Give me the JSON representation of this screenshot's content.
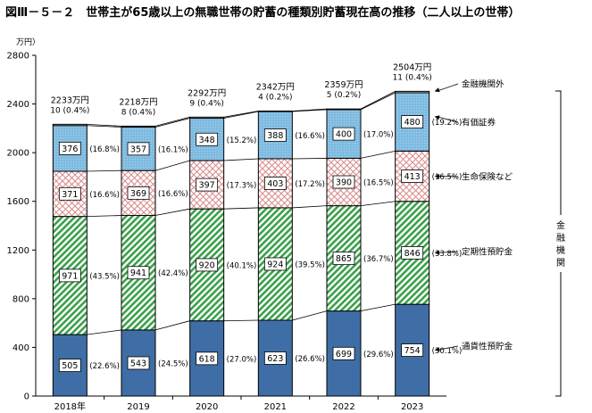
{
  "title": "図Ⅲ－５－２　世帯主が65歳以上の無職世帯の貯蓄の種類別貯蓄現在高の推移（二人以上の世帯）",
  "colors": {
    "currency": "#3f6ea6",
    "time": "#3aa04a",
    "insurance": "#d98a8a",
    "securities": "#7fbbe0",
    "other": "#ffffff",
    "stroke": "#000000"
  },
  "chart_data": {
    "type": "bar",
    "stacked": true,
    "title": "世帯主が65歳以上の無職世帯の貯蓄の種類別貯蓄現在高の推移（二人以上の世帯）",
    "ylabel": "万円）",
    "ylim": [
      0,
      2800
    ],
    "yticks": [
      0,
      400,
      800,
      1200,
      1600,
      2000,
      2400,
      2800
    ],
    "categories": [
      "2018年",
      "2019",
      "2020",
      "2021",
      "2022",
      "2023"
    ],
    "totals": [
      "2233万円",
      "2218万円",
      "2292万円",
      "2342万円",
      "2359万円",
      "2504万円"
    ],
    "series": [
      {
        "key": "currency",
        "name": "通貨性預貯金",
        "values": [
          505,
          543,
          618,
          623,
          699,
          754
        ],
        "shares": [
          "(22.6%)",
          "(24.5%)",
          "(27.0%)",
          "(26.6%)",
          "(29.6%)",
          "(30.1%)"
        ]
      },
      {
        "key": "time",
        "name": "定期性預貯金",
        "values": [
          971,
          941,
          920,
          924,
          865,
          846
        ],
        "shares": [
          "(43.5%)",
          "(42.4%)",
          "(40.1%)",
          "(39.5%)",
          "(36.7%)",
          "(33.8%)"
        ]
      },
      {
        "key": "insurance",
        "name": "生命保険など",
        "values": [
          371,
          369,
          397,
          403,
          390,
          413
        ],
        "shares": [
          "(16.6%)",
          "(16.6%)",
          "(17.3%)",
          "(17.2%)",
          "(16.5%)",
          "(16.5%)"
        ]
      },
      {
        "key": "securities",
        "name": "有価証券",
        "values": [
          376,
          357,
          348,
          388,
          400,
          480
        ],
        "shares": [
          "(16.8%)",
          "(16.1%)",
          "(15.2%)",
          "(16.6%)",
          "(17.0%)",
          "(19.2%)"
        ]
      },
      {
        "key": "other",
        "name": "金融機関外",
        "values": [
          10,
          8,
          9,
          4,
          5,
          11
        ],
        "labels": [
          "10 (0.4%)",
          "8 (0.4%)",
          "9 (0.4%)",
          "4 (0.2%)",
          "5 (0.2%)",
          "11 (0.4%)"
        ]
      }
    ],
    "bracket_label": "金融機関"
  }
}
